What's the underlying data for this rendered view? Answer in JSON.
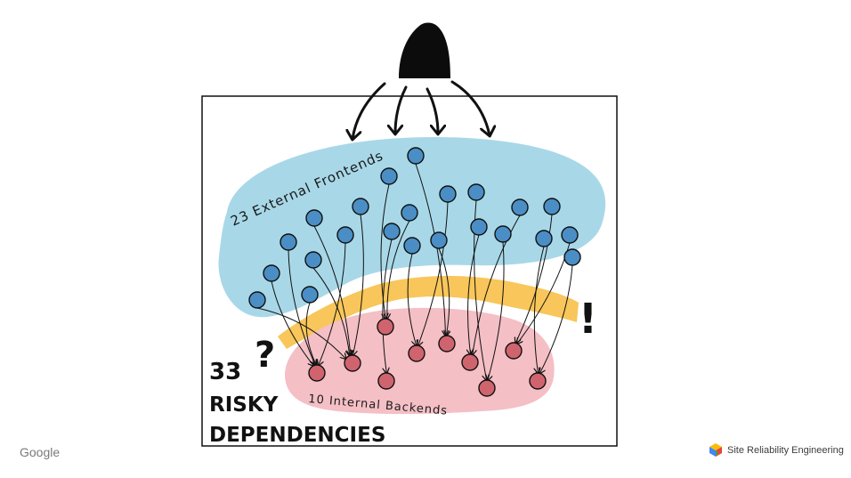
{
  "diagram": {
    "frontends_label": "23 External Frontends",
    "backends_label": "10 Internal Backends",
    "risk_number": "33",
    "risk_line1": "RISKY",
    "risk_line2": "DEPENDENCIES",
    "question_mark": "?",
    "exclamation_mark": "!",
    "frontend_count": 23,
    "backend_count": 10,
    "colors": {
      "frontend_zone": "#a8d8e8",
      "backend_zone": "#f4bfc5",
      "middle_band": "#f8c65a",
      "frontend_node": "#4a8ec5",
      "backend_node": "#d0646e",
      "ink": "#111111"
    }
  },
  "footer": {
    "google_label": "Google",
    "sre_label": "Site Reliability Engineering"
  }
}
